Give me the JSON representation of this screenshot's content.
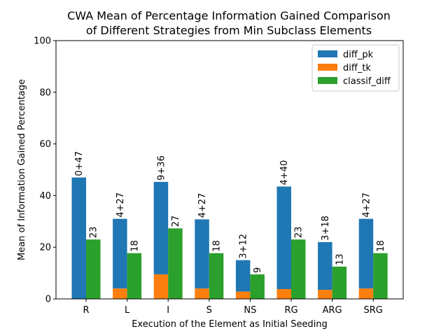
{
  "chart_data": {
    "type": "bar",
    "title_lines": [
      "CWA Mean of Percentage Information Gained Comparison",
      "of Different Strategies from Min Subclass Elements"
    ],
    "xlabel": "Execution of the Element as Initial Seeding",
    "ylabel": "Mean of Information Gained Percentage",
    "ylim": [
      0,
      100
    ],
    "yticks": [
      0,
      20,
      40,
      60,
      80,
      100
    ],
    "categories": [
      "R",
      "L",
      "I",
      "S",
      "NS",
      "RG",
      "ARG",
      "SRG"
    ],
    "series": [
      {
        "name": "diff_pk",
        "color": "#1f77b4",
        "values": [
          47,
          31,
          45.3,
          30.8,
          15,
          43.5,
          22,
          31
        ]
      },
      {
        "name": "diff_tk",
        "color": "#ff7f0e",
        "values": [
          0,
          4,
          9.5,
          4,
          2.8,
          3.8,
          3.5,
          4
        ]
      },
      {
        "name": "classif_diff",
        "color": "#2ca02c",
        "values": [
          23,
          17.7,
          27.3,
          17.7,
          9.5,
          23,
          12.5,
          17.7
        ]
      }
    ],
    "stacked_labels": [
      "0+47",
      "4+27",
      "9+36",
      "4+27",
      "3+12",
      "4+40",
      "3+18",
      "4+27"
    ],
    "classif_labels": [
      "23",
      "18",
      "27",
      "18",
      "9",
      "23",
      "13",
      "18"
    ],
    "legend_position": "upper-right",
    "grid": false
  }
}
